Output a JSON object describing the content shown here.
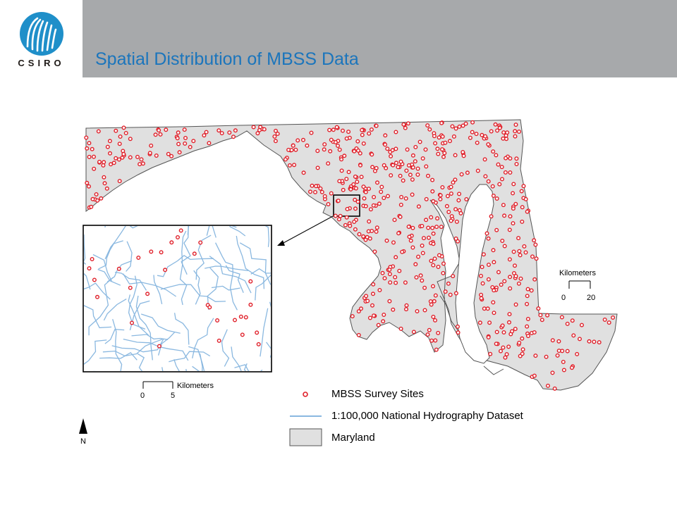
{
  "header": {
    "title": "Spatial Distribution of MBSS Data",
    "logo_text": "CSIRO",
    "bar_color": "#a7a9ab",
    "title_color": "#1b75bc",
    "logo_color": "#1f8fc9"
  },
  "map": {
    "state_fill": "#e0e0e0",
    "state_outline": "#555555",
    "site_color": "#e0202a",
    "stream_color": "#8ab8e0",
    "scale_main": {
      "label": "Kilometers",
      "ticks": [
        "0",
        "20"
      ]
    },
    "scale_inset": {
      "label": "Kilometers",
      "ticks": [
        "0",
        "5"
      ]
    },
    "north_label": "N"
  },
  "legend": {
    "items": [
      {
        "symbol": "site-marker",
        "label": "MBSS Survey Sites"
      },
      {
        "symbol": "stream-line",
        "label": "1:100,000 National Hydrography Dataset"
      },
      {
        "symbol": "state-polygon",
        "label": "Maryland"
      }
    ]
  }
}
